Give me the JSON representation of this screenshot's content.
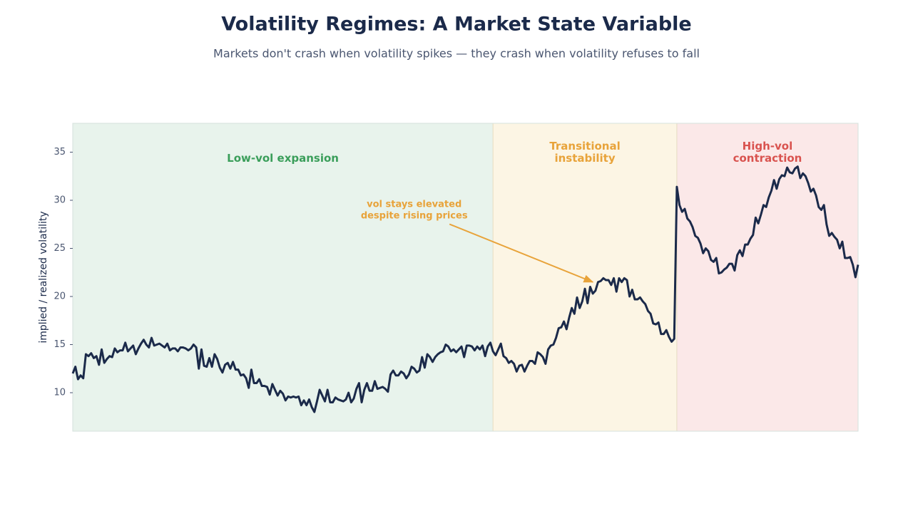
{
  "chart_data": {
    "type": "line",
    "title": "Volatility Regimes: A Market State Variable",
    "subtitle": "Markets don't crash when volatility spikes — they crash when volatility refuses to fall",
    "ylabel": "implied / realized volatility",
    "ylim": [
      6,
      38
    ],
    "yticks": [
      10,
      15,
      20,
      25,
      30,
      35
    ],
    "grid": false,
    "color": "#1b2a4a",
    "values": [
      12.0,
      12.7,
      11.4,
      11.8,
      11.5,
      14.0,
      13.8,
      14.1,
      13.6,
      13.8,
      12.9,
      14.5,
      13.1,
      13.5,
      13.8,
      13.7,
      14.6,
      14.2,
      14.4,
      14.4,
      15.2,
      14.3,
      14.6,
      14.9,
      14.0,
      14.6,
      15.1,
      15.5,
      15.0,
      14.7,
      15.7,
      14.9,
      15.0,
      15.1,
      14.9,
      14.7,
      15.1,
      14.4,
      14.6,
      14.6,
      14.3,
      14.7,
      14.7,
      14.6,
      14.4,
      14.6,
      15.0,
      14.7,
      12.5,
      14.5,
      12.8,
      12.7,
      13.6,
      12.7,
      14.0,
      13.5,
      12.6,
      12.1,
      12.9,
      13.1,
      12.5,
      13.2,
      12.4,
      12.4,
      11.8,
      11.9,
      11.5,
      10.5,
      12.4,
      11.0,
      11.0,
      11.4,
      10.7,
      10.7,
      10.6,
      9.8,
      10.9,
      10.3,
      9.7,
      10.2,
      9.9,
      9.2,
      9.6,
      9.5,
      9.6,
      9.5,
      9.6,
      8.7,
      9.2,
      8.7,
      9.3,
      8.5,
      8.0,
      9.1,
      10.3,
      9.7,
      9.1,
      10.3,
      9.0,
      9.0,
      9.5,
      9.3,
      9.2,
      9.1,
      9.3,
      10.0,
      9.0,
      9.4,
      10.4,
      11.0,
      9.0,
      10.3,
      11.0,
      10.2,
      10.2,
      11.2,
      10.4,
      10.5,
      10.6,
      10.4,
      10.1,
      11.9,
      12.3,
      11.8,
      11.8,
      12.2,
      12.0,
      11.5,
      11.9,
      12.7,
      12.5,
      12.1,
      12.3,
      13.7,
      12.6,
      14.0,
      13.7,
      13.2,
      13.7,
      14.0,
      14.2,
      14.3,
      15.0,
      14.8,
      14.3,
      14.5,
      14.2,
      14.5,
      14.8,
      13.7,
      14.9,
      14.9,
      14.8,
      14.4,
      14.8,
      14.5,
      14.9,
      13.8,
      14.8,
      15.2,
      14.3,
      13.9,
      14.5,
      15.1,
      13.8,
      13.6,
      13.1,
      13.3,
      13.0,
      12.2,
      12.8,
      12.9,
      12.2,
      12.8,
      13.3,
      13.3,
      13.0,
      14.2,
      14.0,
      13.7,
      13.0,
      14.5,
      14.9,
      15.0,
      15.7,
      16.7,
      16.8,
      17.4,
      16.6,
      17.8,
      18.8,
      18.2,
      19.9,
      18.8,
      19.5,
      20.8,
      19.3,
      21.0,
      20.3,
      20.6,
      21.5,
      21.6,
      21.9,
      21.7,
      21.7,
      21.2,
      21.9,
      20.5,
      21.9,
      21.5,
      21.9,
      21.7,
      20.0,
      20.7,
      19.7,
      19.7,
      19.9,
      19.5,
      19.2,
      18.5,
      18.2,
      17.2,
      17.1,
      17.3,
      16.1,
      16.1,
      16.5,
      15.8,
      15.3,
      15.6,
      31.4,
      29.5,
      28.8,
      29.1,
      28.1,
      27.8,
      27.2,
      26.3,
      26.1,
      25.5,
      24.5,
      25.0,
      24.7,
      23.8,
      23.6,
      24.0,
      22.4,
      22.5,
      22.8,
      23.0,
      23.4,
      23.4,
      22.7,
      24.3,
      24.8,
      24.2,
      25.4,
      25.4,
      26.0,
      26.4,
      28.2,
      27.6,
      28.5,
      29.5,
      29.3,
      30.3,
      31.0,
      32.1,
      31.2,
      32.2,
      32.6,
      32.5,
      33.4,
      32.9,
      32.8,
      33.3,
      33.5,
      32.3,
      32.8,
      32.5,
      31.8,
      30.9,
      31.2,
      30.5,
      29.3,
      29.0,
      29.5,
      27.5,
      26.3,
      26.6,
      26.2,
      25.9,
      25.0,
      25.7,
      24.0,
      24.0,
      24.1,
      23.3,
      22.0,
      23.3
    ],
    "regions": [
      {
        "label": [
          "Low-vol expansion"
        ],
        "start": 0,
        "end": 160,
        "fill": "#e8f3ec",
        "color": "#3a9e5a"
      },
      {
        "label": [
          "Transitional",
          "instability"
        ],
        "start": 160,
        "end": 230,
        "fill": "#fcf5e4",
        "color": "#e8a33a"
      },
      {
        "label": [
          "High-vol",
          "contraction"
        ],
        "start": 230,
        "end": 299,
        "fill": "#fbe8e8",
        "color": "#d9534f"
      }
    ],
    "annotations": [
      {
        "text": [
          "vol stays elevated",
          "despite rising prices"
        ],
        "xy": [
          198,
          21.5
        ],
        "xytext": [
          130,
          29.0
        ],
        "color": "#e8a33a"
      }
    ]
  }
}
